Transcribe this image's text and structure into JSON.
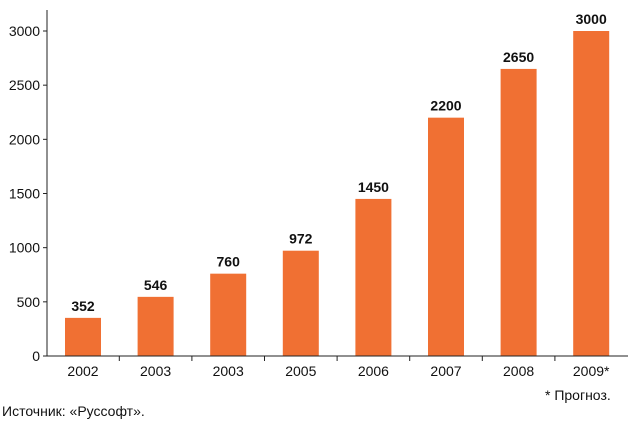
{
  "chart_data": {
    "type": "bar",
    "categories": [
      "2002",
      "2003",
      "2003",
      "2005",
      "2006",
      "2007",
      "2008",
      "2009*"
    ],
    "values": [
      352,
      546,
      760,
      972,
      1450,
      2200,
      2650,
      3000
    ],
    "data_labels": [
      "352",
      "546",
      "760",
      "972",
      "1450",
      "2200",
      "2650",
      "3000"
    ],
    "yticks": [
      0,
      500,
      1000,
      1500,
      2000,
      2500,
      3000
    ],
    "ylim": [
      0,
      3250
    ],
    "bar_color": "#f07033",
    "grid": false,
    "title": "",
    "xlabel": "",
    "ylabel": ""
  },
  "footnote": "* Прогноз.",
  "source": "Источник: «Руссофт»."
}
